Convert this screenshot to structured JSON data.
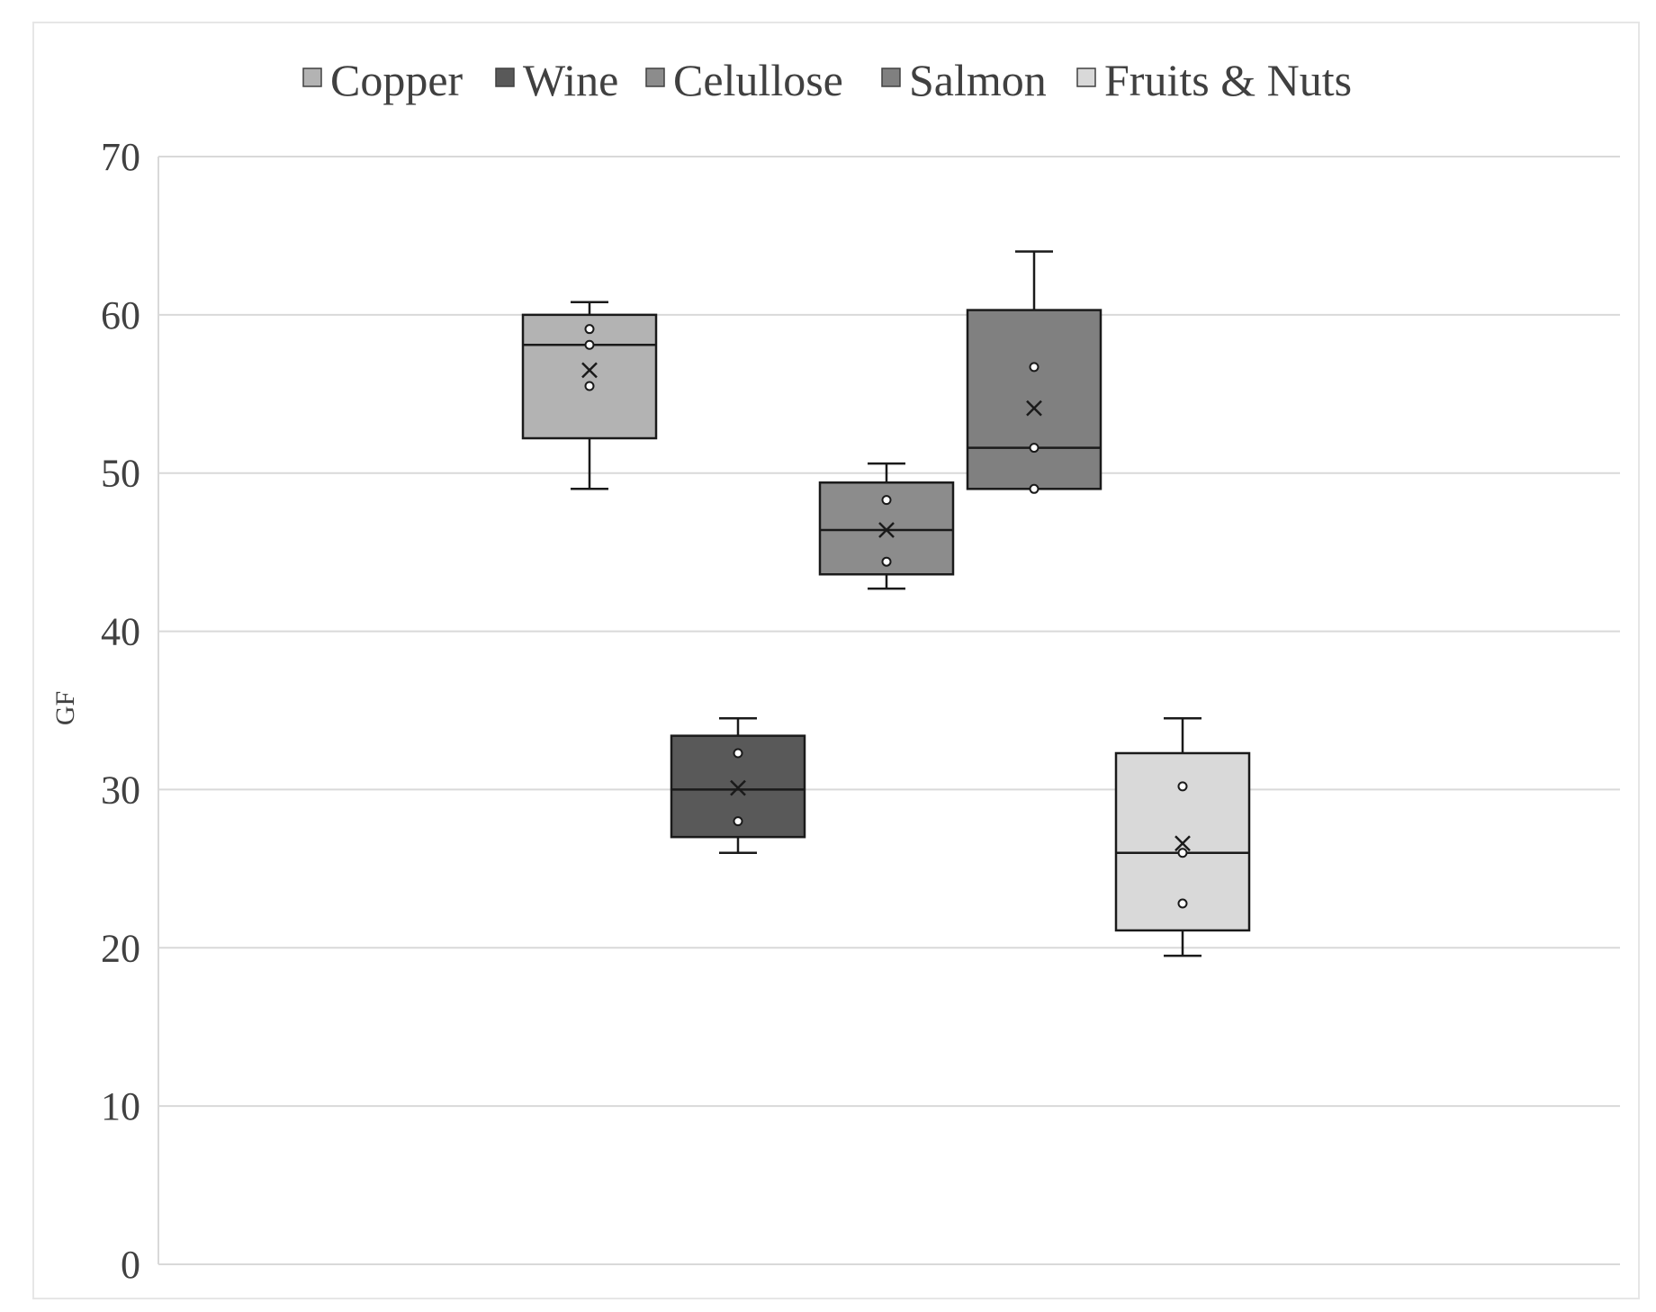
{
  "chart_data": {
    "type": "box",
    "title": "",
    "xlabel": "",
    "ylabel": "GF",
    "ylim": [
      0,
      70
    ],
    "yticks": [
      "0",
      "10",
      "20",
      "30",
      "40",
      "50",
      "60",
      "70"
    ],
    "grid": true,
    "legend_position": "top",
    "series": [
      {
        "name": "Copper",
        "color": "#b3b3b3",
        "min": 49,
        "q1": 52.2,
        "median": 58.1,
        "q3": 60,
        "max": 60.8,
        "mean": 56.5,
        "points": [
          59.1,
          58.1,
          55.5
        ]
      },
      {
        "name": "Wine",
        "color": "#595959",
        "min": 26,
        "q1": 27,
        "median": 30,
        "q3": 33.4,
        "max": 34.5,
        "mean": 30.1,
        "points": [
          32.3,
          28
        ]
      },
      {
        "name": "Celullose",
        "color": "#8c8c8c",
        "min": 42.7,
        "q1": 43.6,
        "median": 46.4,
        "q3": 49.4,
        "max": 50.6,
        "mean": 46.4,
        "points": [
          48.3,
          44.4
        ]
      },
      {
        "name": "Salmon",
        "color": "#808080",
        "min": 49,
        "q1": 49,
        "median": 51.6,
        "q3": 60.3,
        "max": 64,
        "mean": 54.1,
        "points": [
          56.7,
          51.6,
          49
        ]
      },
      {
        "name": "Fruits & Nuts",
        "color": "#d9d9d9",
        "min": 19.5,
        "q1": 21.1,
        "median": 26,
        "q3": 32.3,
        "max": 34.5,
        "mean": 26.6,
        "points": [
          30.2,
          26,
          22.8
        ]
      }
    ]
  }
}
